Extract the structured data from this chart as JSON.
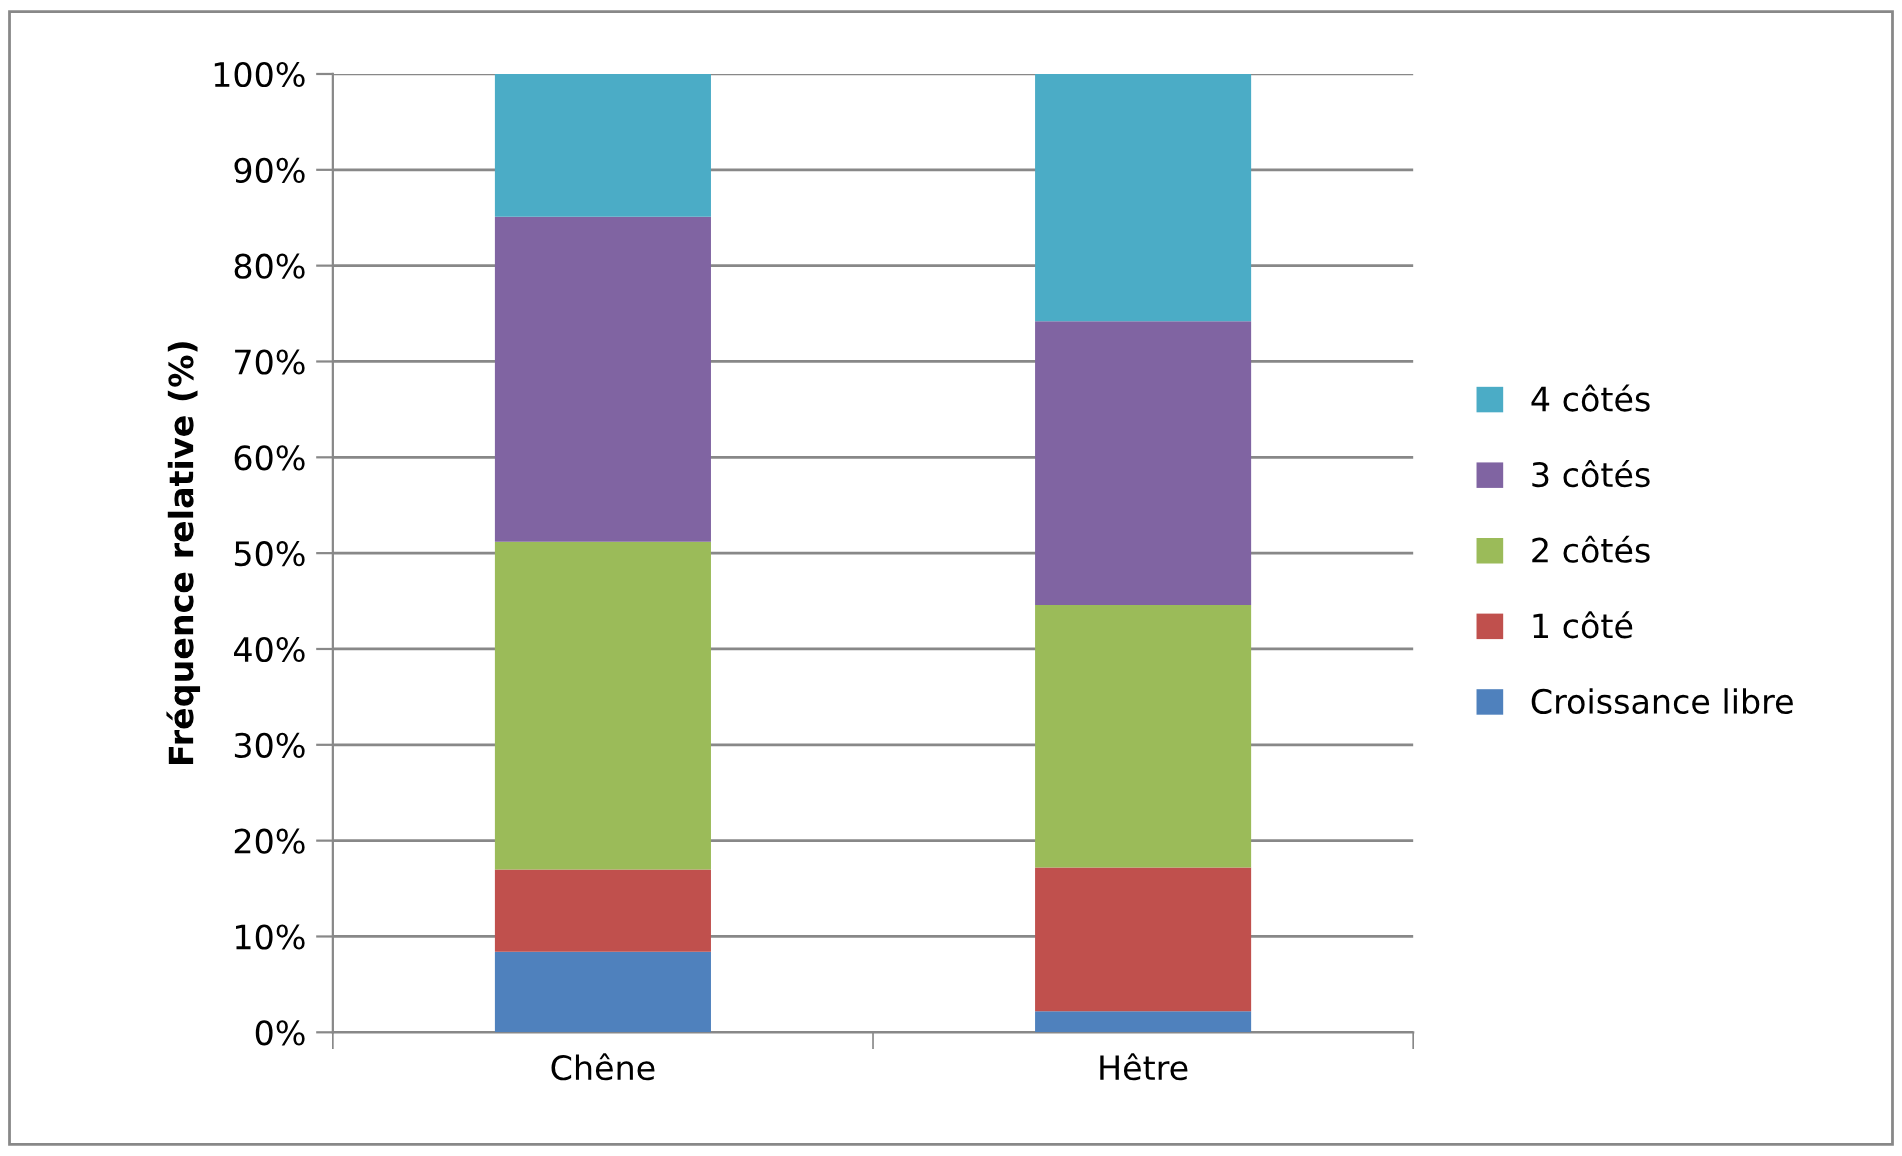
{
  "chart_data": {
    "type": "bar",
    "stacked": true,
    "ylabel": "Fréquence relative (%)",
    "categories": [
      "Chêne",
      "Hêtre"
    ],
    "series": [
      {
        "name": "Croissance libre",
        "color": "#4f81bd",
        "values": [
          8.4,
          2.2
        ]
      },
      {
        "name": "1 côté",
        "color": "#c0504d",
        "values": [
          8.6,
          15.0
        ]
      },
      {
        "name": "2 côtés",
        "color": "#9bbb59",
        "values": [
          34.2,
          27.4
        ]
      },
      {
        "name": "3 côtés",
        "color": "#8064a2",
        "values": [
          33.9,
          29.6
        ]
      },
      {
        "name": "4 côtés",
        "color": "#4bacc6",
        "values": [
          14.9,
          25.8
        ]
      }
    ],
    "ylim": [
      0,
      100
    ],
    "yticks": [
      {
        "value": 0,
        "label": "0%"
      },
      {
        "value": 10,
        "label": "10%"
      },
      {
        "value": 20,
        "label": "20%"
      },
      {
        "value": 30,
        "label": "30%"
      },
      {
        "value": 40,
        "label": "40%"
      },
      {
        "value": 50,
        "label": "50%"
      },
      {
        "value": 60,
        "label": "60%"
      },
      {
        "value": 70,
        "label": "70%"
      },
      {
        "value": 80,
        "label": "80%"
      },
      {
        "value": 90,
        "label": "90%"
      },
      {
        "value": 100,
        "label": "100%"
      }
    ],
    "grid": "y",
    "legend": "right"
  }
}
